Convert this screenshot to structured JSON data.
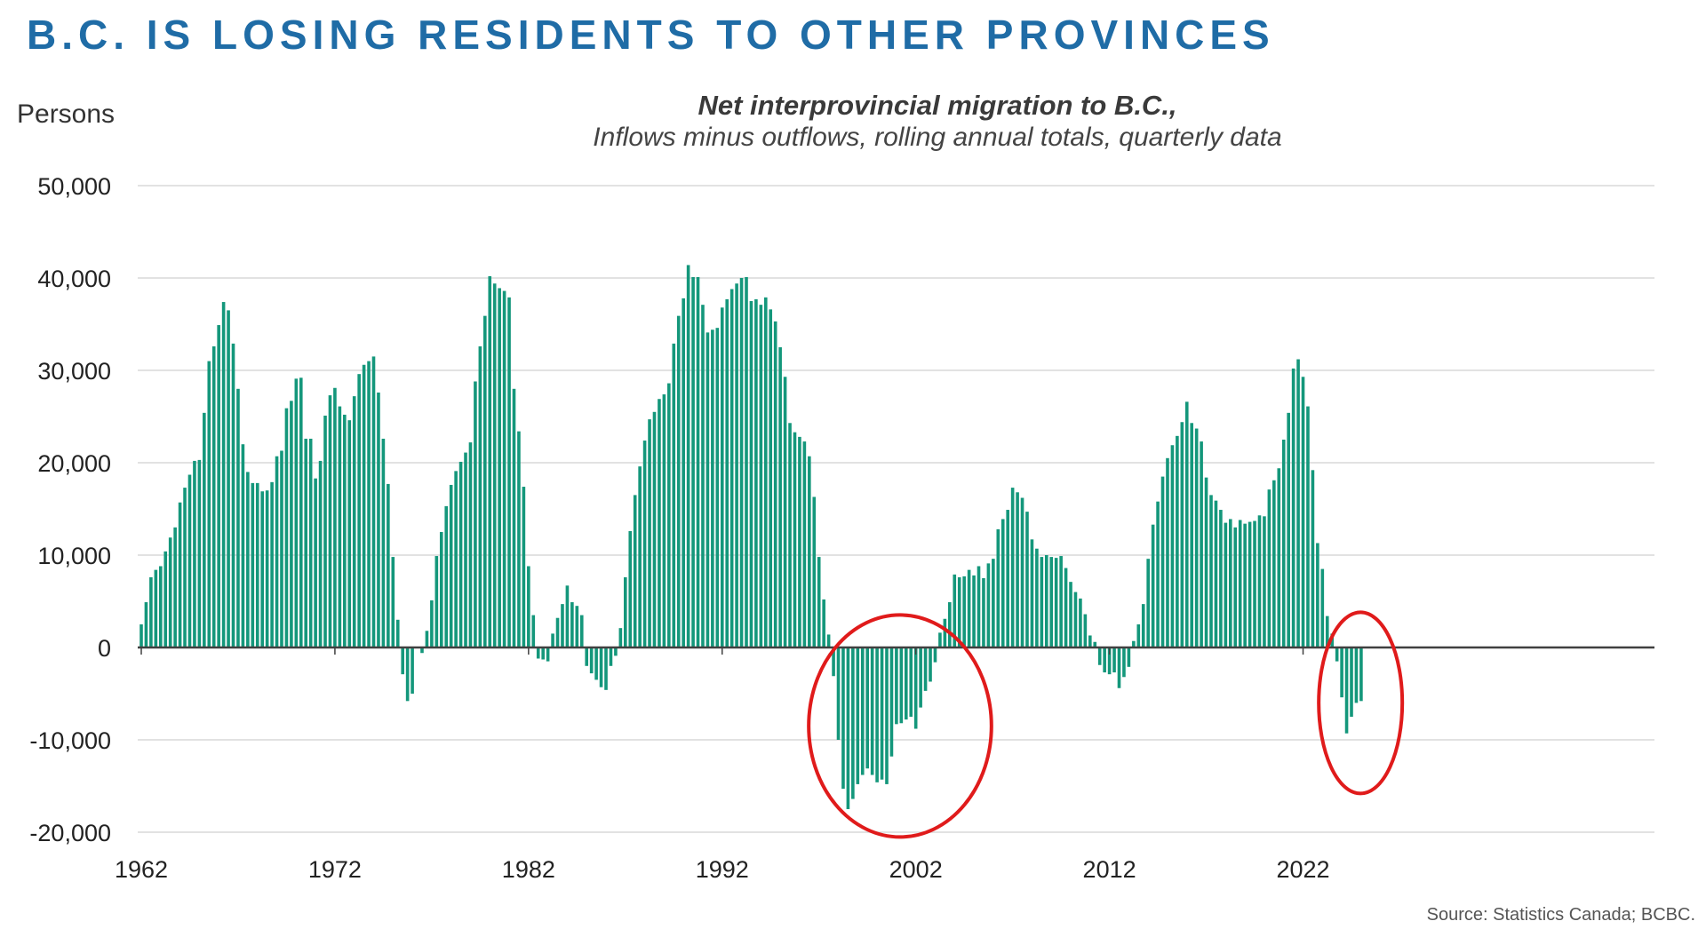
{
  "headline": "B.C. IS LOSING RESIDENTS TO OTHER PROVINCES",
  "source": "Source: Statistics Canada; BCBC.",
  "colors": {
    "headline": "#1f6ca6",
    "bar": "#14977b",
    "grid": "#d9d9d9",
    "zero_line": "#404040",
    "highlight_circle": "#e01b1b"
  },
  "chart_data": {
    "type": "bar",
    "title": "Net interprovincial migration to B.C.,",
    "subtitle": "Inflows minus outflows, rolling annual totals, quarterly data",
    "ylabel": "Persons",
    "xlabel": "",
    "ylim": [
      -20000,
      50000
    ],
    "yticks": [
      50000,
      40000,
      30000,
      20000,
      10000,
      0,
      -10000,
      -20000
    ],
    "ytick_labels": [
      "50,000",
      "40,000",
      "30,000",
      "20,000",
      "10,000",
      "0",
      "-10,000",
      "-20,000"
    ],
    "xticks": [
      1962,
      1972,
      1982,
      1992,
      2002,
      2012,
      2022
    ],
    "x_start": 1962,
    "frequency": "quarterly",
    "grid": true,
    "legend": "none",
    "annotations": [
      {
        "type": "circle",
        "around_period": "1998-2003",
        "color": "#e01b1b"
      },
      {
        "type": "circle",
        "around_period": "2024-2025",
        "color": "#e01b1b"
      }
    ],
    "series": [
      {
        "values": [
          2500,
          4900,
          7600,
          8400,
          8800,
          10400,
          11900,
          13000,
          15700,
          17300,
          18700,
          20200,
          20300,
          25400,
          31000,
          32600,
          34900,
          37400,
          36500,
          32900,
          28000,
          22000,
          19000,
          17800,
          17800,
          16900,
          17000,
          17900,
          20700,
          21300,
          25900,
          26700,
          29100,
          29200,
          22600,
          22600,
          18300,
          20200,
          25100,
          27300,
          28100,
          26100,
          25200,
          24600,
          27200,
          29600,
          30600,
          31000,
          31500,
          27600,
          22600,
          17700,
          9800,
          3000,
          -2900,
          -5800,
          -5000,
          0,
          -600,
          1800,
          5100,
          9900,
          12500,
          15300,
          17600,
          19100,
          20100,
          21100,
          22200,
          28800,
          32600,
          35900,
          40200,
          39400,
          38900,
          38600,
          37900,
          28000,
          23400,
          17400,
          8800,
          3500,
          -1200,
          -1300,
          -1500,
          1500,
          3200,
          4700,
          6700,
          4900,
          4500,
          3500,
          -2000,
          -2800,
          -3500,
          -4300,
          -4600,
          -2000,
          -900,
          2100,
          7600,
          12600,
          16500,
          19600,
          22400,
          24700,
          25500,
          26900,
          27400,
          28600,
          32900,
          35900,
          37800,
          41400,
          40100,
          40100,
          37100,
          34100,
          34400,
          34600,
          36800,
          37700,
          38800,
          39400,
          40000,
          40100,
          37500,
          37700,
          37100,
          37900,
          36600,
          35300,
          32500,
          29300,
          24300,
          23300,
          22800,
          22300,
          20700,
          16300,
          9800,
          5200,
          1400,
          -3100,
          -10000,
          -15300,
          -17500,
          -16400,
          -14800,
          -13800,
          -13100,
          -13800,
          -14600,
          -14300,
          -14800,
          -11800,
          -8300,
          -8200,
          -7800,
          -7500,
          -8800,
          -6500,
          -4700,
          -3700,
          -1600,
          1600,
          3100,
          4900,
          7900,
          7600,
          7700,
          8400,
          7800,
          8800,
          7500,
          9100,
          9600,
          12800,
          13900,
          14900,
          17300,
          16800,
          16200,
          14700,
          11700,
          10700,
          9800,
          10000,
          9800,
          9700,
          9900,
          8600,
          7100,
          6000,
          5300,
          3600,
          1300,
          600,
          -1900,
          -2700,
          -2900,
          -2700,
          -4400,
          -3200,
          -2100,
          700,
          2500,
          4700,
          9600,
          13300,
          15800,
          18500,
          20500,
          21900,
          22900,
          24400,
          26600,
          24300,
          23700,
          22300,
          18400,
          16500,
          15900,
          14900,
          13500,
          13900,
          13000,
          13800,
          13400,
          13600,
          13700,
          14300,
          14200,
          17100,
          18100,
          19400,
          22500,
          25400,
          30200,
          31200,
          29300,
          26100,
          19200,
          11300,
          8500,
          3400,
          1500,
          -1500,
          -5400,
          -9300,
          -7500,
          -6000,
          -5800
        ]
      }
    ]
  }
}
